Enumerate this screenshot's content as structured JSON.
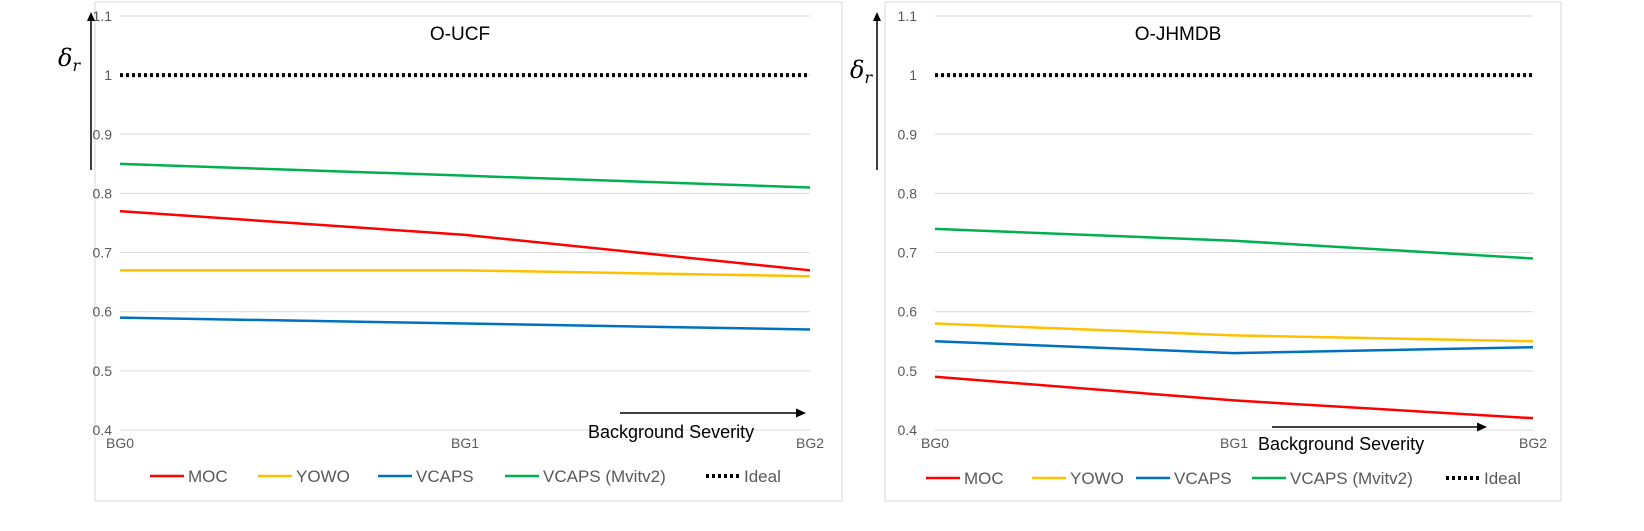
{
  "chart_data": [
    {
      "type": "line",
      "title": "O-UCF",
      "ylabel": "δ",
      "ylabel_sub": "r",
      "xlabel": "Background Severity",
      "categories": [
        "BG0",
        "BG1",
        "BG2"
      ],
      "yticks": [
        "0.4",
        "0.5",
        "0.6",
        "0.7",
        "0.8",
        "0.9",
        "1",
        "1.1"
      ],
      "ylim": [
        0.4,
        1.1
      ],
      "grid": true,
      "legend_position": "bottom",
      "series": [
        {
          "name": "MOC",
          "values": [
            0.77,
            0.73,
            0.67
          ],
          "color": "#ff0000",
          "style": "solid"
        },
        {
          "name": "YOWO",
          "values": [
            0.67,
            0.67,
            0.66
          ],
          "color": "#ffc000",
          "style": "solid"
        },
        {
          "name": "VCAPS",
          "values": [
            0.59,
            0.58,
            0.57
          ],
          "color": "#0070c0",
          "style": "solid"
        },
        {
          "name": "VCAPS (Mvitv2)",
          "values": [
            0.85,
            0.83,
            0.81
          ],
          "color": "#00b050",
          "style": "solid"
        },
        {
          "name": "Ideal",
          "values": [
            1,
            1,
            1
          ],
          "color": "#000000",
          "style": "dotted"
        }
      ]
    },
    {
      "type": "line",
      "title": "O-JHMDB",
      "ylabel": "δ",
      "ylabel_sub": "r",
      "xlabel": "Background Severity",
      "categories": [
        "BG0",
        "BG1",
        "BG2"
      ],
      "yticks": [
        "0.4",
        "0.5",
        "0.6",
        "0.7",
        "0.8",
        "0.9",
        "1",
        "1.1"
      ],
      "ylim": [
        0.4,
        1.1
      ],
      "grid": true,
      "legend_position": "bottom",
      "series": [
        {
          "name": "MOC",
          "values": [
            0.49,
            0.45,
            0.42
          ],
          "color": "#ff0000",
          "style": "solid"
        },
        {
          "name": "YOWO",
          "values": [
            0.58,
            0.56,
            0.55
          ],
          "color": "#ffc000",
          "style": "solid"
        },
        {
          "name": "VCAPS",
          "values": [
            0.55,
            0.53,
            0.54
          ],
          "color": "#0070c0",
          "style": "solid"
        },
        {
          "name": "VCAPS (Mvitv2)",
          "values": [
            0.74,
            0.72,
            0.69
          ],
          "color": "#00b050",
          "style": "solid"
        },
        {
          "name": "Ideal",
          "values": [
            1,
            1,
            1
          ],
          "color": "#000000",
          "style": "dotted"
        }
      ]
    }
  ]
}
